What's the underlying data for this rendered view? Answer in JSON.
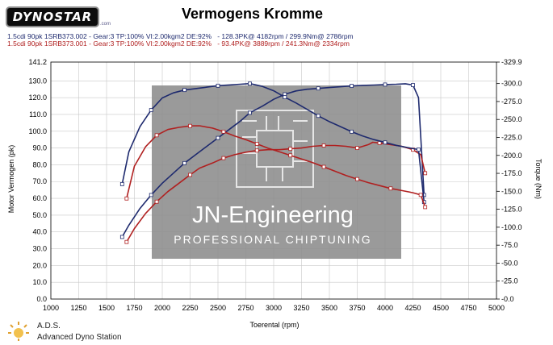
{
  "header": {
    "logo_text": "DYNOSTAR",
    "logo_suffix": ".com",
    "title": "Vermogens Kromme"
  },
  "legend": [
    {
      "text": "1.5cdi 90pk 1SRB373.002 - Gear:3 TP:100% VI:2.00kgm2 DE:92%   - 128.3PK@ 4182rpm / 299.9Nm@ 2786rpm",
      "color": "#1e2a6e"
    },
    {
      "text": "1.5cdi 90pk 1SRB373.001 - Gear:3 TP:100% VI:2.00kgm2 DE:92%   - 93.4PK@ 3889rpm / 241.3Nm@ 2334rpm",
      "color": "#b02020"
    }
  ],
  "watermark": {
    "brand": "JN-Engineering",
    "tagline": "PROFESSIONAL CHIPTUNING"
  },
  "footer": {
    "name": "A.D.S.",
    "subtitle": "Advanced Dyno Station"
  },
  "colors": {
    "run1": "#1e2a6e",
    "run2": "#b02020",
    "watermark_bg": "#8c8c8c",
    "grid": "#c8c8c8"
  },
  "chart_data": {
    "type": "line",
    "title": "Vermogens Kromme",
    "xlabel": "Toerental (rpm)",
    "ylabel": "Motor Vermogen (pk)",
    "y2label": "Torque (Nm)",
    "xlim": [
      1000,
      5000
    ],
    "ylim": [
      0.0,
      141.2
    ],
    "y2lim": [
      0.0,
      329.9
    ],
    "grid": true,
    "x_ticks": [
      "1000",
      "1250",
      "1500",
      "1750",
      "2000",
      "2250",
      "2500",
      "2750",
      "3000",
      "3250",
      "3500",
      "3750",
      "4000",
      "4250",
      "4500",
      "4750",
      "5000"
    ],
    "y_ticks": [
      "0.0",
      "10.0",
      "20.0",
      "30.0",
      "40.0",
      "50.0",
      "60.0",
      "70.0",
      "80.0",
      "90.0",
      "100.0",
      "110.0",
      "120.0",
      "130.0",
      "141.2"
    ],
    "y2_ticks": [
      "-0.0",
      "-25.0",
      "-50.0",
      "-75.0",
      "-100.0",
      "-125.0",
      "-150.0",
      "-175.0",
      "-200.0",
      "-225.0",
      "-250.0",
      "-275.0",
      "-300.0",
      "-329.9"
    ],
    "series": [
      {
        "name": "1.5cdi 90pk 1SRB373.002 - Power",
        "axis": "left",
        "color": "#1e2a6e",
        "x": [
          1640,
          1700,
          1800,
          1900,
          2000,
          2100,
          2200,
          2300,
          2400,
          2500,
          2600,
          2700,
          2786,
          2900,
          3000,
          3100,
          3200,
          3300,
          3400,
          3500,
          3600,
          3700,
          3800,
          3900,
          4000,
          4100,
          4182,
          4250,
          4300,
          4350
        ],
        "values": [
          37,
          44,
          54,
          62,
          69,
          75,
          81,
          86,
          91,
          96,
          101,
          106,
          111,
          115,
          119,
          122,
          124,
          125,
          125.5,
          126,
          126.5,
          127,
          127.3,
          127.5,
          127.8,
          128.0,
          128.3,
          127.5,
          120,
          62
        ]
      },
      {
        "name": "1.5cdi 90pk 1SRB373.001 - Power",
        "axis": "left",
        "color": "#b02020",
        "x": [
          1680,
          1750,
          1850,
          1950,
          2050,
          2150,
          2250,
          2334,
          2450,
          2550,
          2650,
          2750,
          2850,
          2950,
          3050,
          3150,
          3250,
          3350,
          3450,
          3550,
          3650,
          3750,
          3850,
          3889,
          3950,
          4050,
          4150,
          4250,
          4320,
          4360
        ],
        "values": [
          34,
          42,
          51,
          58,
          64,
          69,
          74,
          78,
          81,
          84,
          86,
          87.5,
          88.5,
          89,
          89,
          89.5,
          90,
          91,
          91.5,
          91.5,
          91,
          90,
          92,
          93.4,
          93,
          92,
          91,
          89,
          86,
          75
        ]
      },
      {
        "name": "1.5cdi 90pk 1SRB373.002 - Torque",
        "axis": "right",
        "color": "#1e2a6e",
        "x": [
          1640,
          1700,
          1800,
          1900,
          2000,
          2100,
          2200,
          2300,
          2400,
          2500,
          2600,
          2700,
          2786,
          2900,
          3000,
          3100,
          3200,
          3300,
          3400,
          3500,
          3600,
          3700,
          3800,
          3900,
          4000,
          4100,
          4200,
          4300,
          4350
        ],
        "values": [
          160,
          205,
          240,
          263,
          280,
          287,
          291,
          293,
          295,
          297,
          298,
          299,
          299.9,
          296,
          290,
          281,
          273,
          264,
          255,
          247,
          240,
          233,
          227,
          222,
          218,
          214,
          211,
          208,
          135
        ]
      },
      {
        "name": "1.5cdi 90pk 1SRB373.001 - Torque",
        "axis": "right",
        "color": "#b02020",
        "x": [
          1680,
          1750,
          1850,
          1950,
          2050,
          2150,
          2250,
          2334,
          2450,
          2550,
          2650,
          2750,
          2850,
          2950,
          3050,
          3150,
          3250,
          3350,
          3450,
          3550,
          3650,
          3750,
          3850,
          3950,
          4050,
          4150,
          4250,
          4320,
          4360
        ],
        "values": [
          140,
          185,
          212,
          228,
          236,
          239,
          241,
          241.3,
          238,
          233,
          227,
          222,
          216,
          210,
          205,
          200,
          195,
          190,
          184,
          178,
          172,
          167,
          162,
          158,
          154,
          151,
          148,
          145,
          128
        ]
      }
    ]
  }
}
